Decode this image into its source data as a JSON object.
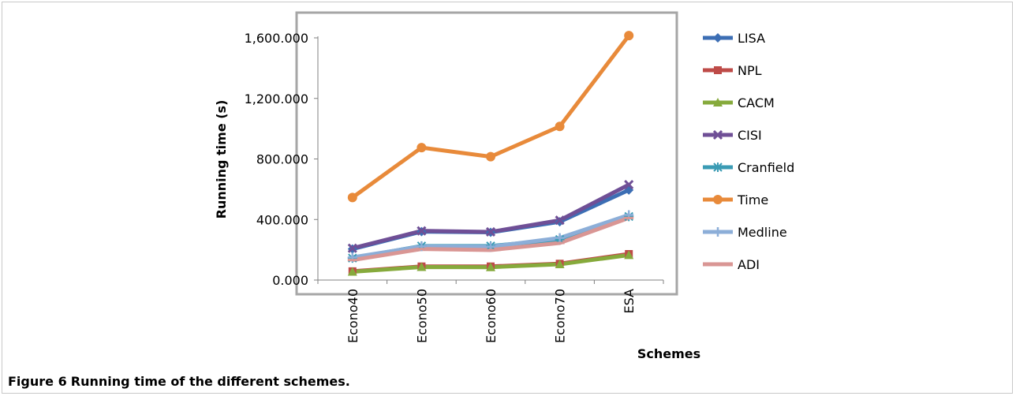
{
  "caption": {
    "label": "Figure 6",
    "text": "Running time of the different schemes."
  },
  "chart_data": {
    "type": "line",
    "title": "",
    "xlabel": "Schemes",
    "ylabel": "Running time (s)",
    "categories": [
      "Econo40",
      "Econo50",
      "Econo60",
      "Econo70",
      "ESA"
    ],
    "ylim": [
      0,
      1600
    ],
    "yticks": [
      0,
      400,
      800,
      1200,
      1600
    ],
    "ytick_labels": [
      "0.000",
      "400.000",
      "800.000",
      "1,200.000",
      "1,600.000"
    ],
    "grid": false,
    "legend_position": "right",
    "series": [
      {
        "name": "LISA",
        "color": "#3c6eb4",
        "marker": "diamond",
        "values": [
          205,
          320,
          315,
          385,
          595
        ]
      },
      {
        "name": "NPL",
        "color": "#be4b48",
        "marker": "square",
        "values": [
          58,
          90,
          90,
          108,
          172
        ]
      },
      {
        "name": "CACM",
        "color": "#86aa3c",
        "marker": "triangle",
        "values": [
          55,
          86,
          85,
          104,
          165
        ]
      },
      {
        "name": "CISI",
        "color": "#6f4f96",
        "marker": "x",
        "values": [
          210,
          325,
          318,
          395,
          630
        ]
      },
      {
        "name": "Cranfield",
        "color": "#3a9bb4",
        "marker": "star",
        "values": [
          145,
          225,
          225,
          268,
          420
        ]
      },
      {
        "name": "Time",
        "color": "#e88a3a",
        "marker": "circle",
        "values": [
          545,
          875,
          815,
          1015,
          1615
        ]
      },
      {
        "name": "Medline",
        "color": "#8caed8",
        "marker": "plus",
        "values": [
          150,
          222,
          220,
          278,
          430
        ]
      },
      {
        "name": "ADI",
        "color": "#d99694",
        "marker": "dash",
        "values": [
          132,
          205,
          198,
          245,
          410
        ]
      }
    ]
  }
}
